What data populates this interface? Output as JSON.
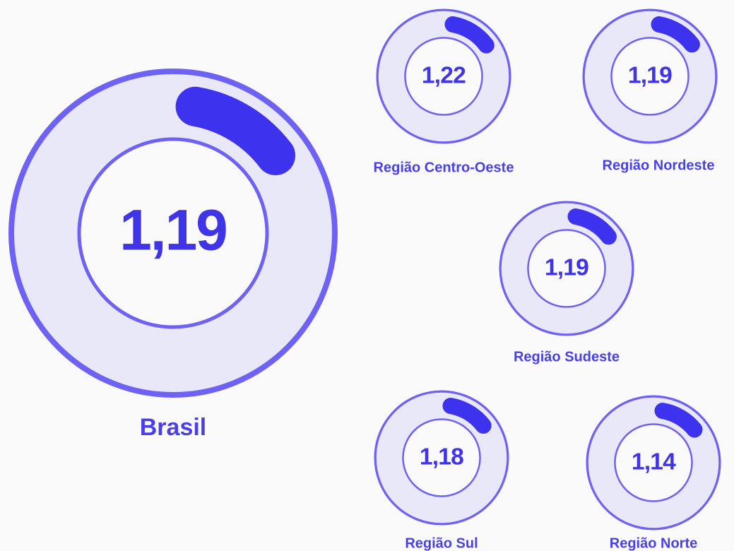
{
  "chart_data": {
    "type": "gauge",
    "categories": [
      "Brasil",
      "Região Centro-Oeste",
      "Região Nordeste",
      "Região Sudeste",
      "Região Sul",
      "Região Norte"
    ],
    "values": [
      1.19,
      1.22,
      1.19,
      1.19,
      1.18,
      1.14
    ],
    "value_labels": [
      "1,19",
      "1,22",
      "1,19",
      "1,19",
      "1,18",
      "1,14"
    ],
    "ylim": [
      0,
      10
    ],
    "color": "#3d33ee"
  }
}
